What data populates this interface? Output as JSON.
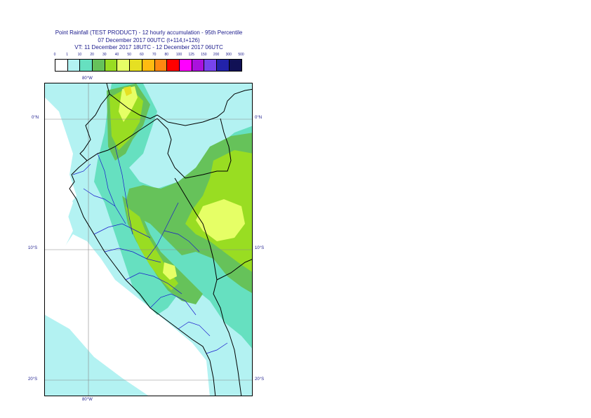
{
  "title": {
    "line1": "Point Rainfall (TEST PRODUCT) - 12 hourly accumulation - 95th Percentile",
    "line2": "07 December 2017 00UTC (t+114,t+126)",
    "line3": "VT: 11 December 2017 18UTC - 12 December 2017 06UTC"
  },
  "legend": {
    "labels": [
      "0",
      "1",
      "10",
      "20",
      "30",
      "40",
      "50",
      "60",
      "70",
      "80",
      "100",
      "125",
      "150",
      "200",
      "300",
      "500"
    ],
    "colors": [
      "#ffffff",
      "#b3f2f2",
      "#66e0c0",
      "#66c25a",
      "#99dd22",
      "#e6ff66",
      "#e6e022",
      "#ffbb11",
      "#ff8811",
      "#ff0000",
      "#ff00ff",
      "#aa11dd",
      "#7744ee",
      "#2222aa",
      "#111155"
    ]
  },
  "axes": {
    "top_lon": "80°W",
    "bottom_lon": "80°W",
    "lat_labels": [
      "0°N",
      "10°S",
      "20°S"
    ]
  },
  "map_colors": {
    "ocean": "#ffffff",
    "light": "#b3f2f2",
    "teal": "#66e0c0",
    "green": "#66c25a",
    "lime": "#99dd22",
    "yellow": "#e6ff66",
    "border": "#000000",
    "admin": "#1a1acc",
    "grid": "#888888"
  }
}
